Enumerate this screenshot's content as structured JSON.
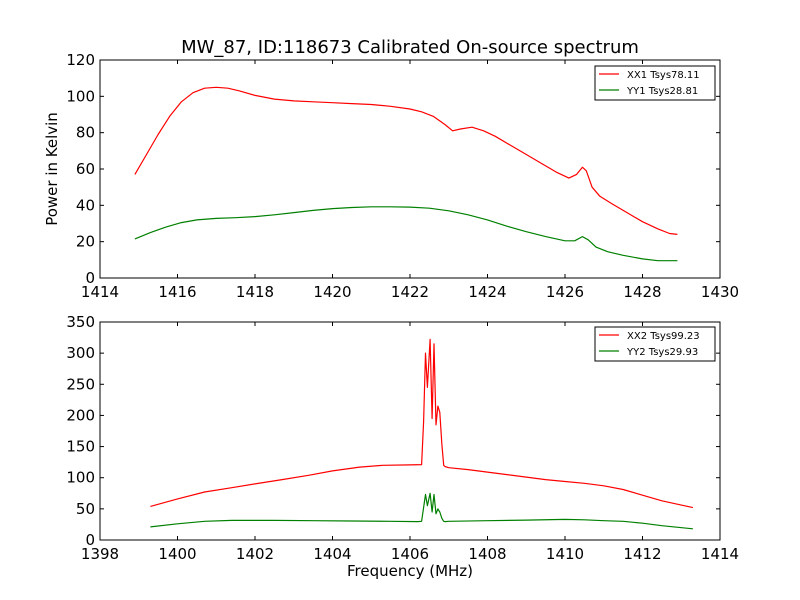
{
  "title": "MW_87, ID:118673 Calibrated On-source spectrum",
  "chart_data": [
    {
      "type": "line",
      "title": "MW_87, ID:118673 Calibrated On-source spectrum",
      "xlabel": "",
      "ylabel": "Power in Kelvin",
      "xlim": [
        1414,
        1430
      ],
      "ylim": [
        0,
        120
      ],
      "xticks": [
        "1414",
        "1416",
        "1418",
        "1420",
        "1422",
        "1424",
        "1426",
        "1428",
        "1430"
      ],
      "yticks": [
        "0",
        "20",
        "40",
        "60",
        "80",
        "100",
        "120"
      ],
      "legend_position": "top-right",
      "series": [
        {
          "name": "XX1 Tsys78.11",
          "color": "#ff0000",
          "x": [
            1414.9,
            1415.2,
            1415.5,
            1415.8,
            1416.1,
            1416.4,
            1416.7,
            1417.0,
            1417.3,
            1417.6,
            1418.0,
            1418.5,
            1419.0,
            1419.5,
            1420.0,
            1420.5,
            1421.0,
            1421.5,
            1422.0,
            1422.3,
            1422.6,
            1422.9,
            1423.1,
            1423.3,
            1423.6,
            1423.9,
            1424.2,
            1424.6,
            1425.0,
            1425.4,
            1425.8,
            1426.1,
            1426.3,
            1426.45,
            1426.55,
            1426.7,
            1426.9,
            1427.2,
            1427.6,
            1428.0,
            1428.4,
            1428.7,
            1428.9
          ],
          "y": [
            57,
            68,
            79,
            89,
            97,
            102,
            104.5,
            105,
            104.5,
            103,
            100.5,
            98.5,
            97.5,
            97,
            96.5,
            96,
            95.5,
            94.5,
            93,
            91.5,
            89,
            84.5,
            81,
            82,
            83,
            81,
            78,
            73,
            68,
            63,
            58,
            55,
            57,
            61,
            59,
            50,
            45,
            41,
            36,
            31,
            27,
            24.5,
            24
          ]
        },
        {
          "name": "YY1 Tsys28.81",
          "color": "#008000",
          "x": [
            1414.9,
            1415.3,
            1415.7,
            1416.1,
            1416.5,
            1417.0,
            1417.5,
            1418.0,
            1418.5,
            1419.0,
            1419.5,
            1420.0,
            1420.5,
            1421.0,
            1421.5,
            1422.0,
            1422.5,
            1423.0,
            1423.5,
            1424.0,
            1424.5,
            1425.0,
            1425.5,
            1426.0,
            1426.25,
            1426.45,
            1426.6,
            1426.8,
            1427.1,
            1427.5,
            1428.0,
            1428.4,
            1428.9
          ],
          "y": [
            21.5,
            25,
            28,
            30.5,
            32,
            32.8,
            33.2,
            33.8,
            34.8,
            36,
            37.2,
            38.2,
            38.8,
            39.2,
            39.2,
            39,
            38.4,
            37,
            34.8,
            32,
            28.5,
            25.5,
            22.8,
            20.5,
            20.5,
            22.8,
            21,
            17,
            14.5,
            12.5,
            10.5,
            9.5,
            9.5
          ]
        }
      ]
    },
    {
      "type": "line",
      "title": "",
      "xlabel": "Frequency (MHz)",
      "ylabel": "",
      "xlim": [
        1398,
        1414
      ],
      "ylim": [
        0,
        350
      ],
      "xticks": [
        "1398",
        "1400",
        "1402",
        "1404",
        "1406",
        "1408",
        "1410",
        "1412",
        "1414"
      ],
      "yticks": [
        "0",
        "50",
        "100",
        "150",
        "200",
        "250",
        "300",
        "350"
      ],
      "legend_position": "top-right",
      "series": [
        {
          "name": "XX2 Tsys99.23",
          "color": "#ff0000",
          "x": [
            1399.3,
            1400.0,
            1400.7,
            1401.4,
            1402.0,
            1402.7,
            1403.4,
            1404.0,
            1404.7,
            1405.3,
            1406.0,
            1406.3,
            1406.35,
            1406.4,
            1406.45,
            1406.52,
            1406.57,
            1406.62,
            1406.67,
            1406.72,
            1406.77,
            1406.82,
            1406.87,
            1406.9,
            1407.0,
            1407.5,
            1408.0,
            1408.5,
            1409.0,
            1409.5,
            1410.0,
            1410.5,
            1411.0,
            1411.5,
            1412.0,
            1412.5,
            1413.0,
            1413.3
          ],
          "y": [
            54,
            66,
            77,
            84,
            90,
            97,
            104,
            111,
            117,
            120,
            120.5,
            121,
            190,
            300,
            245,
            322,
            195,
            315,
            185,
            215,
            205,
            155,
            120,
            118,
            116,
            113,
            109,
            105,
            101,
            97,
            94,
            91,
            87,
            81,
            72,
            63,
            56,
            52
          ]
        },
        {
          "name": "YY2 Tsys29.93",
          "color": "#008000",
          "x": [
            1399.3,
            1400.0,
            1400.7,
            1401.4,
            1402.5,
            1403.5,
            1404.5,
            1405.5,
            1406.2,
            1406.3,
            1406.4,
            1406.45,
            1406.52,
            1406.57,
            1406.62,
            1406.67,
            1406.72,
            1406.77,
            1406.82,
            1406.87,
            1406.9,
            1407.0,
            1408.0,
            1409.0,
            1410.0,
            1410.5,
            1411.0,
            1411.5,
            1412.0,
            1412.5,
            1413.3
          ],
          "y": [
            21,
            26,
            30,
            31.5,
            31.5,
            31,
            30.5,
            30,
            29.5,
            30,
            73,
            55,
            75,
            45,
            73,
            42,
            50,
            45,
            35,
            30,
            29.5,
            30,
            31,
            32,
            33,
            32.5,
            31,
            30,
            27,
            23,
            18
          ]
        }
      ]
    }
  ]
}
